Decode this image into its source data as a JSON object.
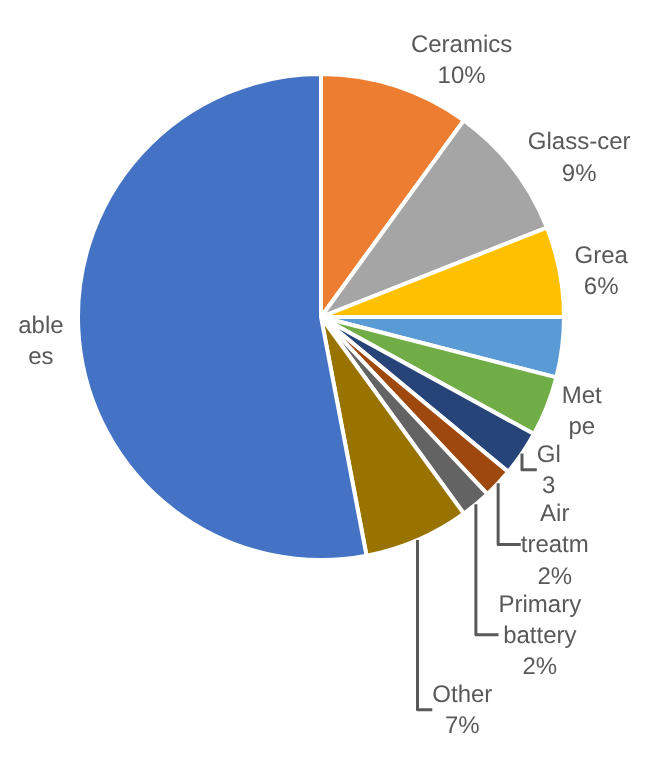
{
  "chart_data": {
    "type": "pie",
    "categories": [
      "Ceramics",
      "Glass-cer",
      "Grea",
      null,
      "Met\npe",
      "Gl",
      "Air\ntreatm",
      "Primary\nbattery",
      "Other",
      "able\nes"
    ],
    "values": [
      10,
      9,
      6,
      4,
      4,
      3,
      2,
      2,
      7,
      53
    ],
    "value_labels": [
      "10%",
      "9%",
      "6%",
      null,
      null,
      "3",
      "2%",
      "2%",
      "7%",
      null
    ],
    "colors": [
      "#ed7d31",
      "#a5a5a5",
      "#ffc000",
      "#5b9bd5",
      "#70ad47",
      "#264478",
      "#9e480e",
      "#636363",
      "#997300",
      "#4472c4"
    ],
    "legend": false
  }
}
